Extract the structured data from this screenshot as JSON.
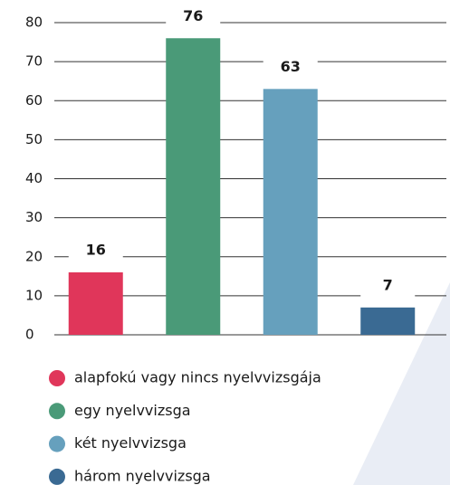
{
  "chart_data": {
    "type": "bar",
    "categories": [
      "alapfokú vagy nincs nyelvvizsgája",
      "egy nyelvvizsga",
      "két nyelvvizsga",
      "három nyelvvizsga"
    ],
    "values": [
      16,
      76,
      63,
      7
    ],
    "colors": [
      "#e0365a",
      "#4a9a78",
      "#66a0bd",
      "#3a6a93"
    ],
    "ylim": [
      0,
      80
    ],
    "yticks": [
      0,
      10,
      20,
      30,
      40,
      50,
      60,
      70,
      80
    ],
    "grid": true,
    "legend": "bottom"
  }
}
